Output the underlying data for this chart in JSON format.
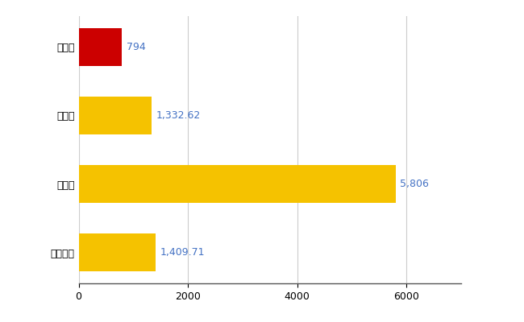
{
  "categories": [
    "菰野町",
    "県平均",
    "県最大",
    "全国平均"
  ],
  "values": [
    794,
    1332.62,
    5806,
    1409.71
  ],
  "labels": [
    "794",
    "1,332.62",
    "5,806",
    "1,409.71"
  ],
  "bar_colors": [
    "#cc0000",
    "#f5c200",
    "#f5c200",
    "#f5c200"
  ],
  "xlim": [
    0,
    7000
  ],
  "xticks": [
    0,
    2000,
    4000,
    6000
  ],
  "background_color": "#ffffff",
  "label_color": "#4472c4",
  "grid_color": "#cccccc",
  "label_fontsize": 9,
  "tick_fontsize": 9,
  "bar_height": 0.55,
  "figsize": [
    6.5,
    4.0
  ],
  "dpi": 100
}
